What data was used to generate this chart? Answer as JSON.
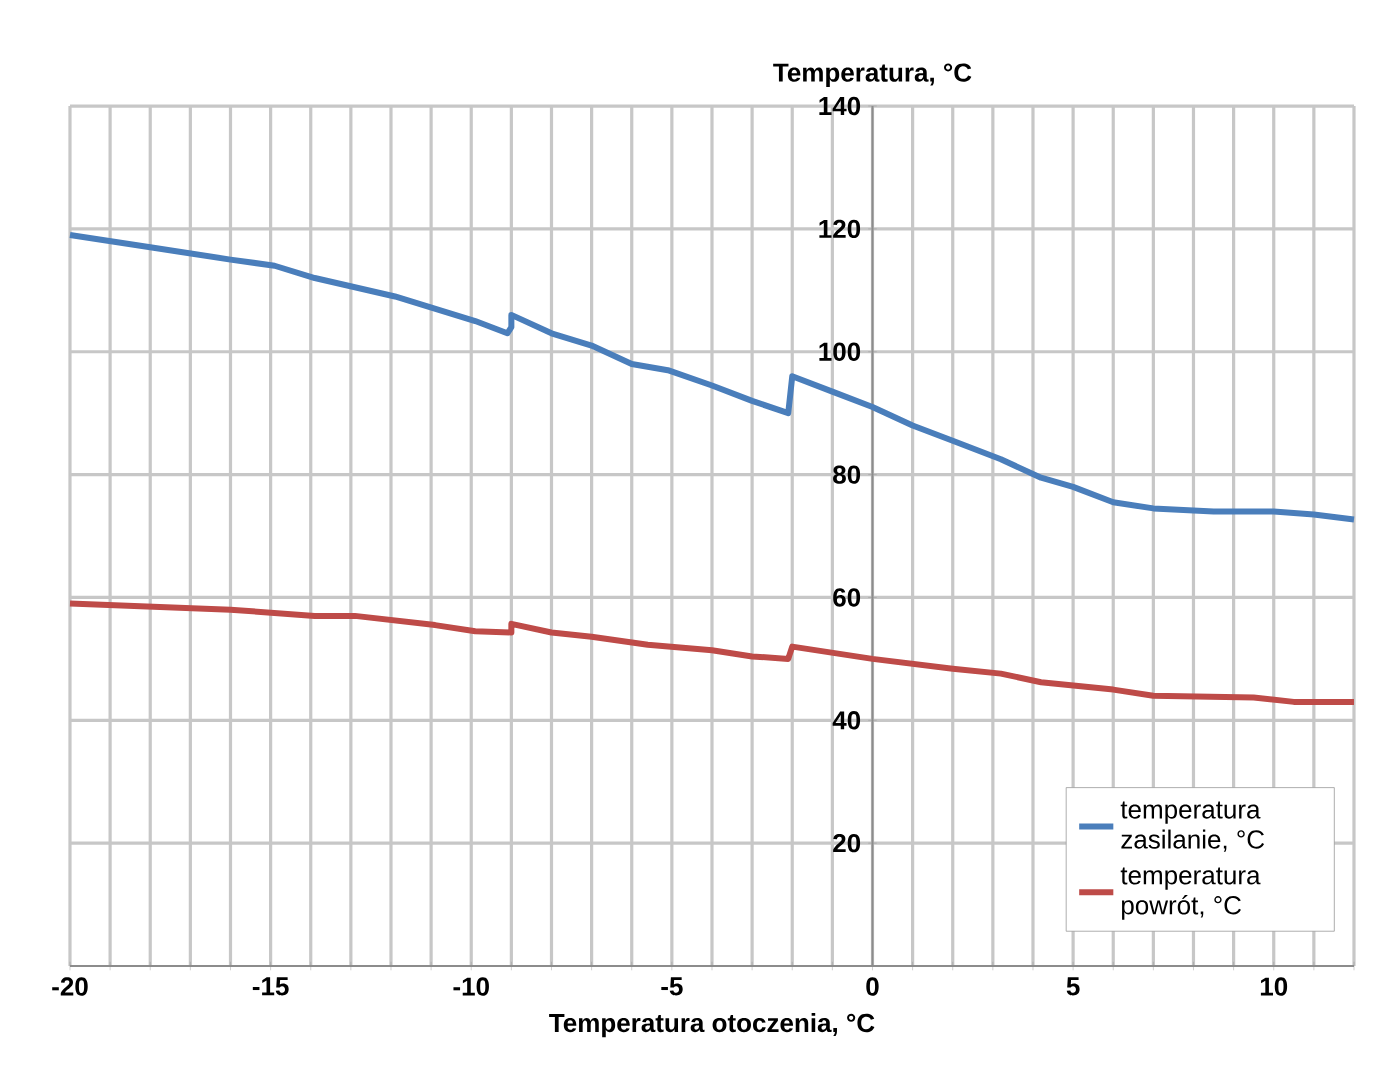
{
  "chart_data": {
    "type": "line",
    "xlabel": "Temperatura otoczenia, °C",
    "ylabel": "Temperatura, °C",
    "xlim": [
      -20,
      12
    ],
    "ylim": [
      0,
      140
    ],
    "xticks": [
      -20,
      {
        "value": -19,
        "label": null
      },
      {
        "value": -18,
        "label": null
      },
      {
        "value": -17,
        "label": null
      },
      {
        "value": -16,
        "label": null
      },
      -15,
      {
        "value": -14,
        "label": null
      },
      {
        "value": -13,
        "label": null
      },
      {
        "value": -12,
        "label": null
      },
      {
        "value": -11,
        "label": null
      },
      -10,
      {
        "value": -9,
        "label": null
      },
      {
        "value": -8,
        "label": null
      },
      {
        "value": -7,
        "label": null
      },
      {
        "value": -6,
        "label": null
      },
      -5,
      {
        "value": -4,
        "label": null
      },
      {
        "value": -3,
        "label": null
      },
      {
        "value": -2,
        "label": null
      },
      {
        "value": -1,
        "label": null
      },
      0,
      {
        "value": 1,
        "label": null
      },
      {
        "value": 2,
        "label": null
      },
      {
        "value": 3,
        "label": null
      },
      {
        "value": 4,
        "label": null
      },
      5,
      {
        "value": 6,
        "label": null
      },
      {
        "value": 7,
        "label": null
      },
      {
        "value": 8,
        "label": null
      },
      {
        "value": 9,
        "label": null
      },
      10,
      {
        "value": 11,
        "label": null
      },
      {
        "value": 12,
        "label": null
      }
    ],
    "yticks": [
      {
        "value": 0,
        "label": null
      },
      20,
      40,
      60,
      80,
      100,
      120,
      140
    ],
    "grid": true,
    "legend": "bottom right",
    "marker": "none",
    "line_style": "solid",
    "series": [
      {
        "name": "temperatura zasilanie, °C",
        "color": "#4a7ebb",
        "x": [
          -20,
          -18,
          -16,
          -14.9,
          -13.9,
          -12.9,
          -11.9,
          -10.9,
          -9.9,
          -9.1,
          -9,
          -9,
          -8,
          -7,
          -6,
          -5.1,
          -4,
          -3,
          -2.1,
          -2,
          -1,
          0,
          1,
          2,
          3.2,
          4.2,
          5,
          6,
          7,
          8.5,
          10,
          11,
          12
        ],
        "values": [
          119,
          117,
          115,
          114,
          112,
          110.5,
          109,
          107,
          105,
          103,
          104,
          106,
          103,
          101,
          98,
          97,
          94.5,
          92,
          90,
          96,
          93.5,
          91,
          88,
          85.5,
          82.5,
          79.5,
          78,
          75.5,
          74.5,
          74,
          74,
          73.5,
          72.7
        ]
      },
      {
        "name": "temperatura powrót, °C",
        "color": "#be4b48",
        "x": [
          -20,
          -18,
          -16,
          -13.9,
          -12.9,
          -10.9,
          -9.9,
          -9,
          -9,
          -8,
          -7,
          -5.6,
          -4,
          -3,
          -2.1,
          -2,
          -1,
          0,
          2,
          3.2,
          4.2,
          6,
          7,
          9.5,
          10.5,
          12
        ],
        "values": [
          59,
          58.5,
          58,
          57,
          57,
          55.5,
          54.5,
          54.3,
          55.7,
          54.3,
          53.6,
          52.3,
          51.4,
          50.4,
          50,
          52,
          51,
          50,
          48.4,
          47.6,
          46.2,
          45,
          44,
          43.7,
          43,
          43
        ]
      }
    ]
  }
}
